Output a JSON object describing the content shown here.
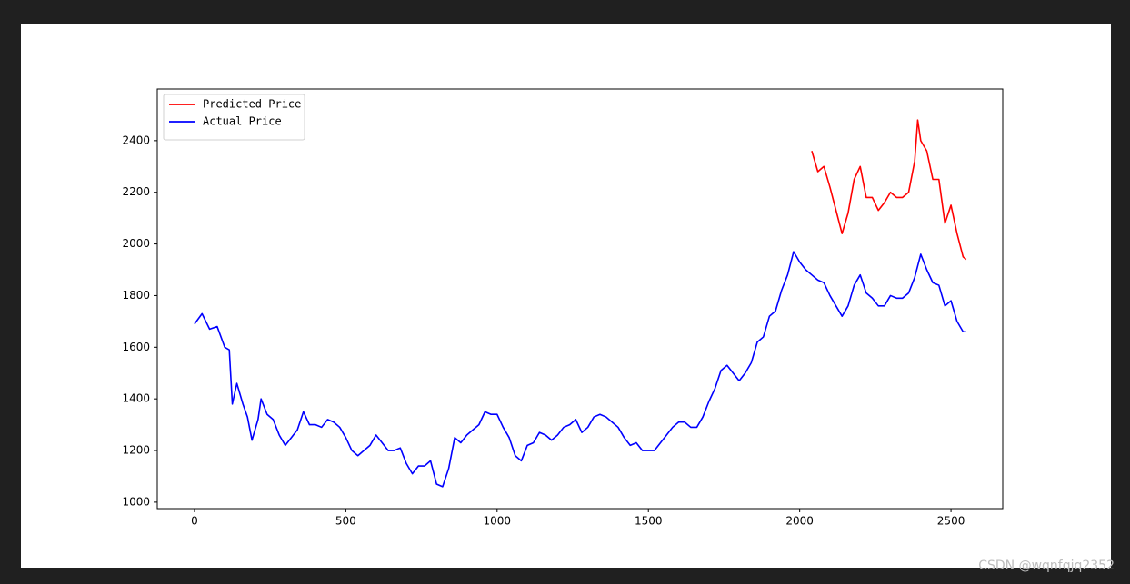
{
  "chart_data": {
    "type": "line",
    "xlim": [
      -123,
      2671
    ],
    "ylim": [
      975,
      2600
    ],
    "xticks": [
      0,
      500,
      1000,
      1500,
      2000,
      2500
    ],
    "yticks": [
      1000,
      1200,
      1400,
      1600,
      1800,
      2000,
      2200,
      2400
    ],
    "legend": "upper left",
    "watermark": "CSDN @wqnfqjq2352",
    "series": [
      {
        "name": "Predicted Price",
        "color": "#ff0000",
        "x": [
          2040,
          2060,
          2080,
          2100,
          2120,
          2140,
          2160,
          2180,
          2200,
          2220,
          2240,
          2260,
          2280,
          2300,
          2320,
          2340,
          2360,
          2380,
          2390,
          2400,
          2420,
          2440,
          2460,
          2480,
          2500,
          2520,
          2540,
          2550
        ],
        "values": [
          2360,
          2280,
          2300,
          2220,
          2130,
          2040,
          2120,
          2250,
          2300,
          2180,
          2180,
          2130,
          2160,
          2200,
          2180,
          2180,
          2200,
          2320,
          2480,
          2400,
          2360,
          2250,
          2250,
          2080,
          2150,
          2040,
          1950,
          1940
        ]
      },
      {
        "name": "Actual Price",
        "color": "#0000ff",
        "x": [
          0,
          25,
          50,
          75,
          100,
          115,
          125,
          140,
          160,
          175,
          190,
          210,
          220,
          240,
          260,
          280,
          300,
          320,
          340,
          360,
          380,
          400,
          420,
          440,
          460,
          480,
          500,
          520,
          540,
          560,
          580,
          600,
          620,
          640,
          660,
          680,
          700,
          720,
          740,
          760,
          780,
          800,
          820,
          840,
          860,
          880,
          900,
          920,
          940,
          960,
          980,
          1000,
          1020,
          1040,
          1060,
          1080,
          1100,
          1120,
          1140,
          1160,
          1180,
          1200,
          1220,
          1240,
          1260,
          1280,
          1300,
          1320,
          1340,
          1360,
          1380,
          1400,
          1420,
          1440,
          1460,
          1480,
          1500,
          1520,
          1540,
          1560,
          1580,
          1600,
          1620,
          1640,
          1660,
          1680,
          1700,
          1720,
          1740,
          1760,
          1780,
          1800,
          1820,
          1840,
          1860,
          1880,
          1900,
          1920,
          1940,
          1960,
          1980,
          2000,
          2020,
          2040,
          2060,
          2080,
          2100,
          2120,
          2140,
          2160,
          2180,
          2200,
          2220,
          2240,
          2260,
          2280,
          2300,
          2320,
          2340,
          2360,
          2380,
          2400,
          2420,
          2440,
          2460,
          2480,
          2500,
          2520,
          2540,
          2550
        ],
        "values": [
          1690,
          1730,
          1670,
          1680,
          1600,
          1590,
          1380,
          1460,
          1380,
          1330,
          1240,
          1320,
          1400,
          1340,
          1320,
          1260,
          1220,
          1250,
          1280,
          1350,
          1300,
          1300,
          1290,
          1320,
          1310,
          1290,
          1250,
          1200,
          1180,
          1200,
          1220,
          1260,
          1230,
          1200,
          1200,
          1210,
          1150,
          1110,
          1140,
          1140,
          1160,
          1070,
          1060,
          1130,
          1250,
          1230,
          1260,
          1280,
          1300,
          1350,
          1340,
          1340,
          1290,
          1250,
          1180,
          1160,
          1220,
          1230,
          1270,
          1260,
          1240,
          1260,
          1290,
          1300,
          1320,
          1270,
          1290,
          1330,
          1340,
          1330,
          1310,
          1290,
          1250,
          1220,
          1230,
          1200,
          1200,
          1200,
          1230,
          1260,
          1290,
          1310,
          1310,
          1290,
          1290,
          1330,
          1390,
          1440,
          1510,
          1530,
          1500,
          1470,
          1500,
          1540,
          1620,
          1640,
          1720,
          1740,
          1820,
          1880,
          1970,
          1930,
          1900,
          1880,
          1860,
          1850,
          1800,
          1760,
          1720,
          1760,
          1840,
          1880,
          1810,
          1790,
          1760,
          1760,
          1800,
          1790,
          1790,
          1810,
          1870,
          1960,
          1900,
          1850,
          1840,
          1760,
          1780,
          1700,
          1660,
          1660
        ]
      }
    ]
  }
}
